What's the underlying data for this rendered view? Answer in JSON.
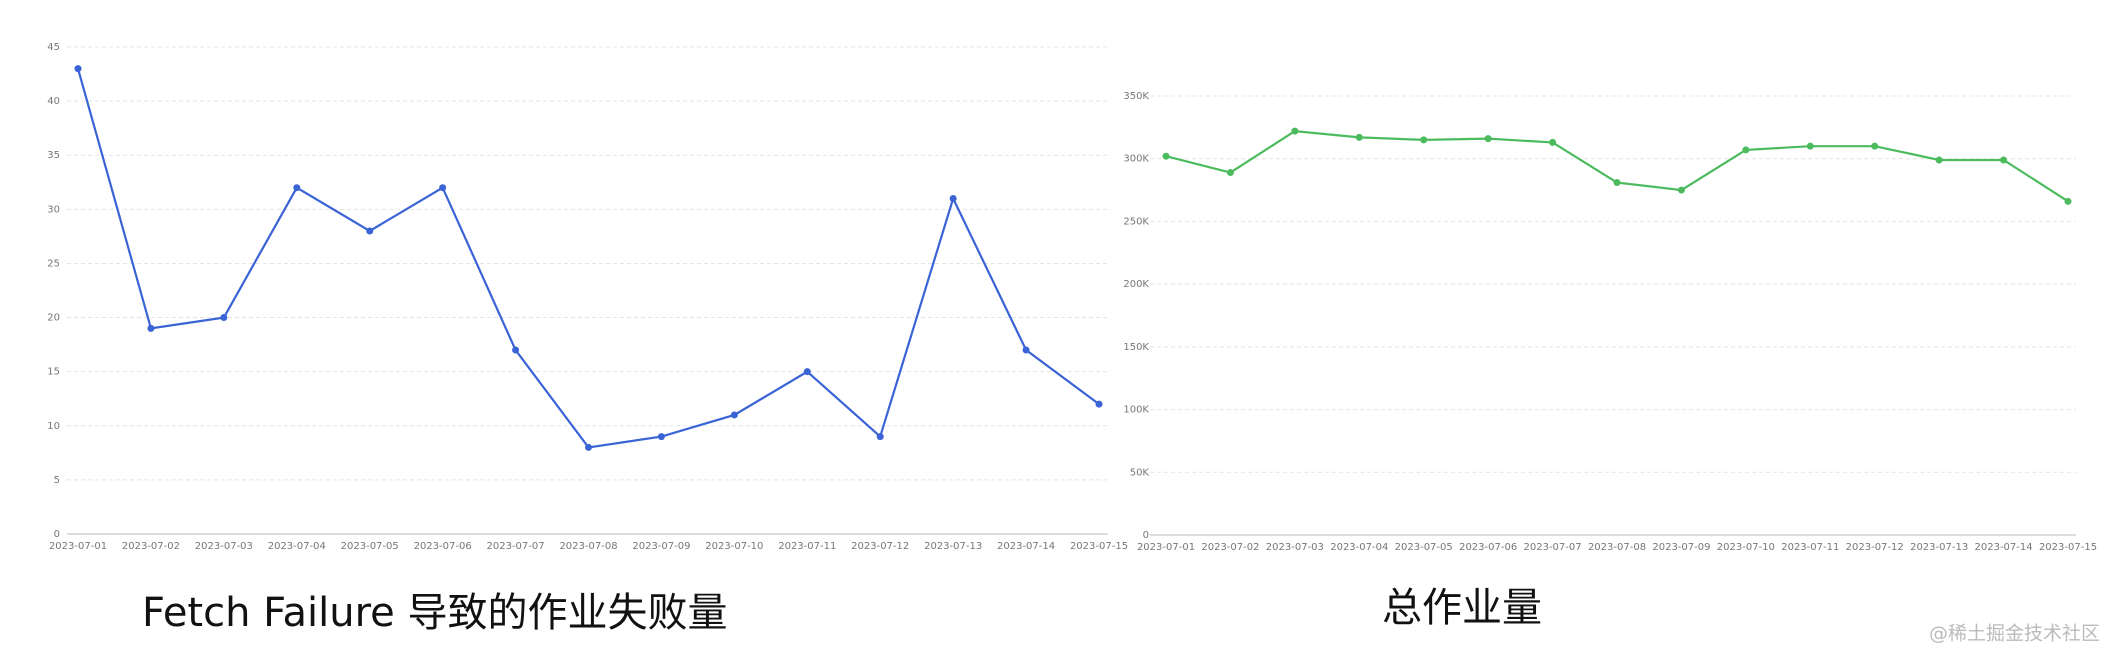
{
  "chart_data": [
    {
      "type": "line",
      "title": "Fetch Failure 导致的作业失败量",
      "categories": [
        "2023-07-01",
        "2023-07-02",
        "2023-07-03",
        "2023-07-04",
        "2023-07-05",
        "2023-07-06",
        "2023-07-07",
        "2023-07-08",
        "2023-07-09",
        "2023-07-10",
        "2023-07-11",
        "2023-07-12",
        "2023-07-13",
        "2023-07-14",
        "2023-07-15"
      ],
      "values": [
        43,
        19,
        20,
        32,
        28,
        32,
        17,
        8,
        9,
        11,
        15,
        9,
        31,
        17,
        12
      ],
      "color": "#3a63d6",
      "ylim": [
        0,
        45
      ],
      "yticks": [
        0,
        5,
        10,
        15,
        20,
        25,
        30,
        35,
        40,
        45
      ],
      "grid": true
    },
    {
      "type": "line",
      "title": "总作业量",
      "categories": [
        "2023-07-01",
        "2023-07-02",
        "2023-07-03",
        "2023-07-04",
        "2023-07-05",
        "2023-07-06",
        "2023-07-07",
        "2023-07-08",
        "2023-07-09",
        "2023-07-10",
        "2023-07-11",
        "2023-07-12",
        "2023-07-13",
        "2023-07-14",
        "2023-07-15"
      ],
      "values": [
        302000,
        289000,
        322000,
        317000,
        315000,
        316000,
        313000,
        281000,
        275000,
        307000,
        310000,
        310000,
        299000,
        299000,
        266000
      ],
      "color": "#4cbb5e",
      "ylim": [
        0,
        350000
      ],
      "yticks": [
        0,
        {
          "value": 50000,
          "label": "50K"
        },
        {
          "value": 100000,
          "label": "100K"
        },
        {
          "value": 150000,
          "label": "150K"
        },
        {
          "value": 200000,
          "label": "200K"
        },
        {
          "value": 250000,
          "label": "250K"
        },
        {
          "value": 300000,
          "label": "300K"
        },
        {
          "value": 350000,
          "label": "350K"
        }
      ],
      "grid": true
    }
  ],
  "watermark": "@稀土掘金技术社区"
}
